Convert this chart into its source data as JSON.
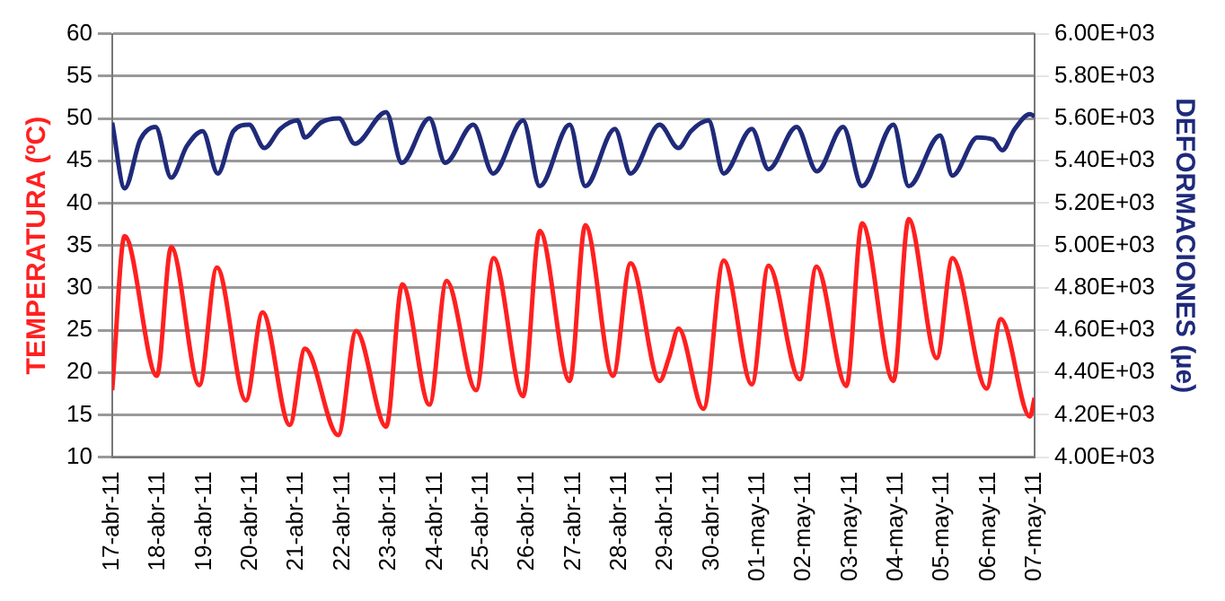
{
  "chart_data": {
    "type": "line",
    "ylabel": "TEMPERATURA (ºC)",
    "y2label": "DEFORMACIONES (µe)",
    "xlim": [
      "--04-17",
      "--05-07"
    ],
    "xticks": [
      {
        "value": "--04-17",
        "label": "17-abr-11"
      },
      {
        "value": "--04-18",
        "label": "18-abr-11"
      },
      {
        "value": "--04-19",
        "label": "19-abr-11"
      },
      {
        "value": "--04-20",
        "label": "20-abr-11"
      },
      {
        "value": "--04-21",
        "label": "21-abr-11"
      },
      {
        "value": "--04-22",
        "label": "22-abr-11"
      },
      {
        "value": "--04-23",
        "label": "23-abr-11"
      },
      {
        "value": "--04-24",
        "label": "24-abr-11"
      },
      {
        "value": "--04-25",
        "label": "25-abr-11"
      },
      {
        "value": "--04-26",
        "label": "26-abr-11"
      },
      {
        "value": "--04-27",
        "label": "27-abr-11"
      },
      {
        "value": "--04-28",
        "label": "28-abr-11"
      },
      {
        "value": "--04-29",
        "label": "29-abr-11"
      },
      {
        "value": "--04-30",
        "label": "30-abr-11"
      },
      {
        "value": "--05-01",
        "label": "01-may-11"
      },
      {
        "value": "--05-02",
        "label": "02-may-11"
      },
      {
        "value": "--05-03",
        "label": "03-may-11"
      },
      {
        "value": "--05-04",
        "label": "04-may-11"
      },
      {
        "value": "--05-05",
        "label": "05-may-11"
      },
      {
        "value": "--05-06",
        "label": "06-may-11"
      },
      {
        "value": "--05-07",
        "label": "07-may-11"
      }
    ],
    "ylim": [
      10,
      60
    ],
    "yticks": [
      10,
      15,
      20,
      25,
      30,
      35,
      40,
      45,
      50,
      55,
      60
    ],
    "y2lim": [
      4000,
      6000
    ],
    "y2ticks": [
      {
        "value": 4000,
        "label": "4.00E+03"
      },
      {
        "value": 4200,
        "label": "4.20E+03"
      },
      {
        "value": 4400,
        "label": "4.40E+03"
      },
      {
        "value": 4600,
        "label": "4.60E+03"
      },
      {
        "value": 4800,
        "label": "4.80E+03"
      },
      {
        "value": 5000,
        "label": "5.00E+03"
      },
      {
        "value": 5200,
        "label": "5.20E+03"
      },
      {
        "value": 5400,
        "label": "5.40E+03"
      },
      {
        "value": 5600,
        "label": "5.60E+03"
      },
      {
        "value": 5800,
        "label": "5.80E+03"
      },
      {
        "value": 6000,
        "label": "6.00E+03"
      }
    ],
    "grid": "y",
    "legend": false,
    "marker": "none",
    "line_style": "solid",
    "series": [
      {
        "color": "#ff2020",
        "x": [
          "--04-17T00:00",
          "--04-17T06:29",
          "--04-17T23:17",
          "--04-18T06:43",
          "--04-18T21:22",
          "--04-19T06:29",
          "--04-19T21:36",
          "--04-20T06:14",
          "--04-20T20:24",
          "--04-21T04:19",
          "--04-21T21:36",
          "--04-22T06:58",
          "--04-22T22:34",
          "--04-23T06:58",
          "--04-23T21:07",
          "--04-24T06:00",
          "--04-24T21:22",
          "--04-25T06:29",
          "--04-25T21:50",
          "--04-26T06:29",
          "--04-26T22:05",
          "--04-27T06:14",
          "--04-27T20:38",
          "--04-28T05:46",
          "--04-28T20:53",
          "--04-29T01:41",
          "--04-29T06:43",
          "--04-29T19:41",
          "--04-30T06:14",
          "--04-30T20:53",
          "--05-01T05:31",
          "--05-01T21:50",
          "--05-02T06:29",
          "--05-02T22:05",
          "--05-03T06:14",
          "--05-03T22:34",
          "--05-04T06:29",
          "--05-04T21:07",
          "--05-05T05:17",
          "--05-05T23:02",
          "--05-06T06:29",
          "--05-06T21:36",
          "--05-07T00:00"
        ],
        "values": [
          17.9,
          36.1,
          19.6,
          34.8,
          18.5,
          32.4,
          16.7,
          27.1,
          13.8,
          22.8,
          12.6,
          24.9,
          13.6,
          30.4,
          16.2,
          30.8,
          17.9,
          33.5,
          17.2,
          36.7,
          19,
          37.4,
          19.6,
          32.9,
          19,
          21.7,
          25.2,
          15.7,
          33.2,
          18.6,
          32.6,
          19.2,
          32.5,
          18.4,
          37.6,
          19,
          38.1,
          21.7,
          33.5,
          18.1,
          26.3,
          14.8,
          17
        ]
      },
      {
        "color": "#1f2a7a",
        "axis": "y2",
        "x": [
          "--04-17T00:00",
          "--04-17T06:29",
          "--04-17T14:38",
          "--04-17T22:34",
          "--04-18T06:43",
          "--04-18T14:53",
          "--04-18T23:02",
          "--04-19T06:58",
          "--04-19T15:07",
          "--04-19T23:17",
          "--04-20T07:12",
          "--04-20T15:22",
          "--04-21T00:29",
          "--04-21T04:19",
          "--04-21T12:29",
          "--04-21T22:05",
          "--04-22T06:14",
          "--04-22T22:34",
          "--04-23T06:43",
          "--04-23T21:07",
          "--04-24T05:17",
          "--04-24T19:55",
          "--04-25T06:14",
          "--04-25T21:50",
          "--04-26T06:29",
          "--04-26T22:05",
          "--04-27T06:14",
          "--04-27T21:36",
          "--04-28T05:46",
          "--04-28T20:53",
          "--04-29T06:43",
          "--04-29T13:12",
          "--04-29T22:19",
          "--04-30T06:14",
          "--04-30T20:53",
          "--05-01T05:31",
          "--05-01T20:10",
          "--05-02T06:43",
          "--05-02T20:24",
          "--05-03T06:14",
          "--05-03T22:34",
          "--05-04T06:29",
          "--05-04T22:48",
          "--05-05T05:17",
          "--05-05T18:14",
          "--05-06T02:24",
          "--05-06T07:12",
          "--05-06T13:41",
          "--05-06T21:36",
          "--05-07T00:00"
        ],
        "values": [
          5580,
          5270,
          5500,
          5560,
          5320,
          5470,
          5540,
          5340,
          5540,
          5570,
          5460,
          5550,
          5590,
          5510,
          5580,
          5600,
          5480,
          5630,
          5390,
          5600,
          5390,
          5570,
          5340,
          5590,
          5280,
          5570,
          5280,
          5550,
          5340,
          5570,
          5460,
          5540,
          5590,
          5340,
          5550,
          5360,
          5560,
          5350,
          5560,
          5280,
          5570,
          5280,
          5520,
          5330,
          5510,
          5500,
          5450,
          5550,
          5620,
          5610
        ]
      }
    ]
  }
}
